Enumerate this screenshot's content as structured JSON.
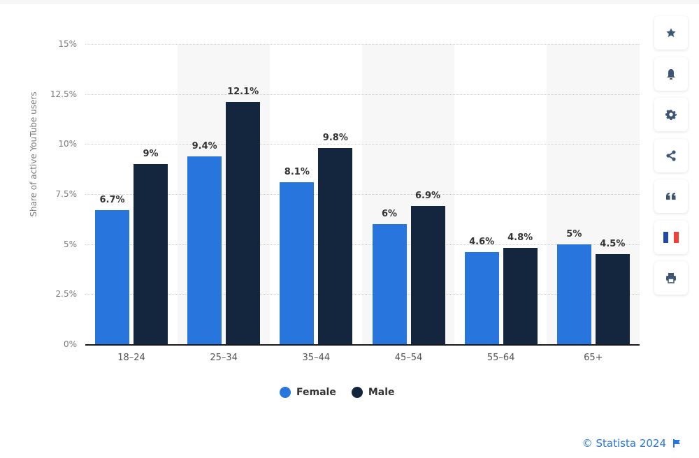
{
  "chart_data": {
    "type": "bar",
    "title": "",
    "xlabel": "",
    "ylabel": "Share of active YouTube users",
    "ylim": [
      0,
      15
    ],
    "yticks": [
      "0%",
      "2.5%",
      "5%",
      "7.5%",
      "10%",
      "12.5%",
      "15%"
    ],
    "categories": [
      "18-24",
      "25-34",
      "35-44",
      "45-54",
      "55-64",
      "65+"
    ],
    "series": [
      {
        "name": "Female",
        "color": "#2876dd",
        "values": [
          6.7,
          9.4,
          8.1,
          6.0,
          4.6,
          5.0
        ],
        "labels": [
          "6.7%",
          "9.4%",
          "8.1%",
          "6%",
          "4.6%",
          "5%"
        ]
      },
      {
        "name": "Male",
        "color": "#13263e",
        "values": [
          9.0,
          12.1,
          9.8,
          6.9,
          4.8,
          4.5
        ],
        "labels": [
          "9%",
          "12.1%",
          "9.8%",
          "6.9%",
          "4.8%",
          "4.5%"
        ]
      }
    ],
    "grid": true,
    "legend_position": "bottom"
  },
  "legend": {
    "female": "Female",
    "male": "Male"
  },
  "sidebar": {
    "buttons": [
      {
        "icon": "star-icon"
      },
      {
        "icon": "bell-icon"
      },
      {
        "icon": "gear-icon"
      },
      {
        "icon": "share-icon"
      },
      {
        "icon": "quote-icon"
      },
      {
        "icon": "french-flag-icon"
      },
      {
        "icon": "print-icon"
      }
    ]
  },
  "footer": {
    "copyright": "© Statista 2024"
  }
}
